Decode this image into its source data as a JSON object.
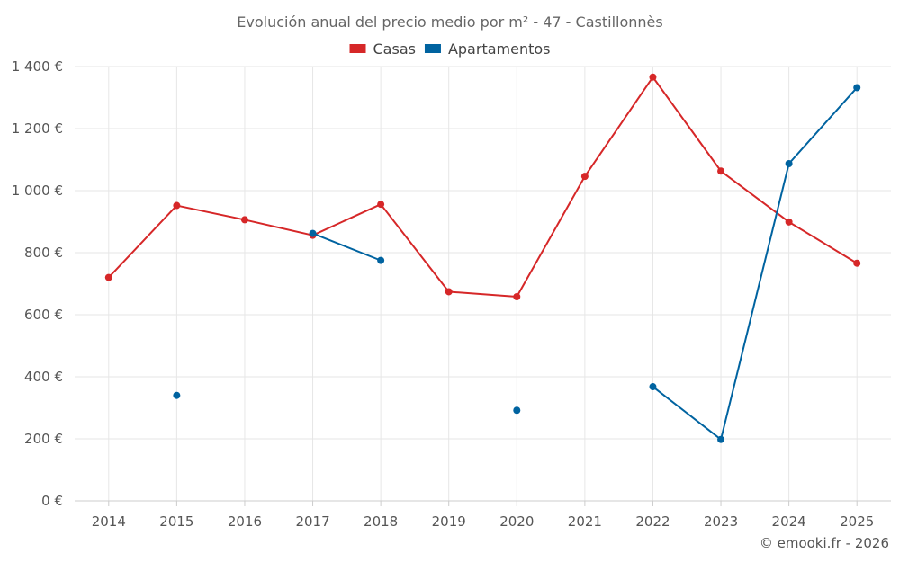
{
  "chart_data": {
    "type": "line",
    "title": "Evolución anual del precio medio por m² - 47 - Castillonnès",
    "categories": [
      "2014",
      "2015",
      "2016",
      "2017",
      "2018",
      "2019",
      "2020",
      "2021",
      "2022",
      "2023",
      "2024",
      "2025"
    ],
    "ylim": [
      0,
      1400
    ],
    "yticks": [
      0,
      200,
      400,
      600,
      800,
      1000,
      1200,
      1400
    ],
    "ytick_labels": [
      "0 €",
      "200 €",
      "400 €",
      "600 €",
      "800 €",
      "1 000 €",
      "1 200 €",
      "1 400 €"
    ],
    "legend_position": "top-center",
    "grid": true,
    "series": [
      {
        "name": "Casas",
        "color": "#d62728",
        "values": [
          720,
          952,
          906,
          856,
          956,
          674,
          658,
          1046,
          1366,
          1063,
          899,
          766
        ]
      },
      {
        "name": "Apartamentos",
        "color": "#0063a0",
        "values": [
          null,
          340,
          null,
          862,
          775,
          null,
          292,
          null,
          368,
          198,
          1087,
          1332
        ]
      }
    ]
  },
  "credit": "© emooki.fr - 2026"
}
